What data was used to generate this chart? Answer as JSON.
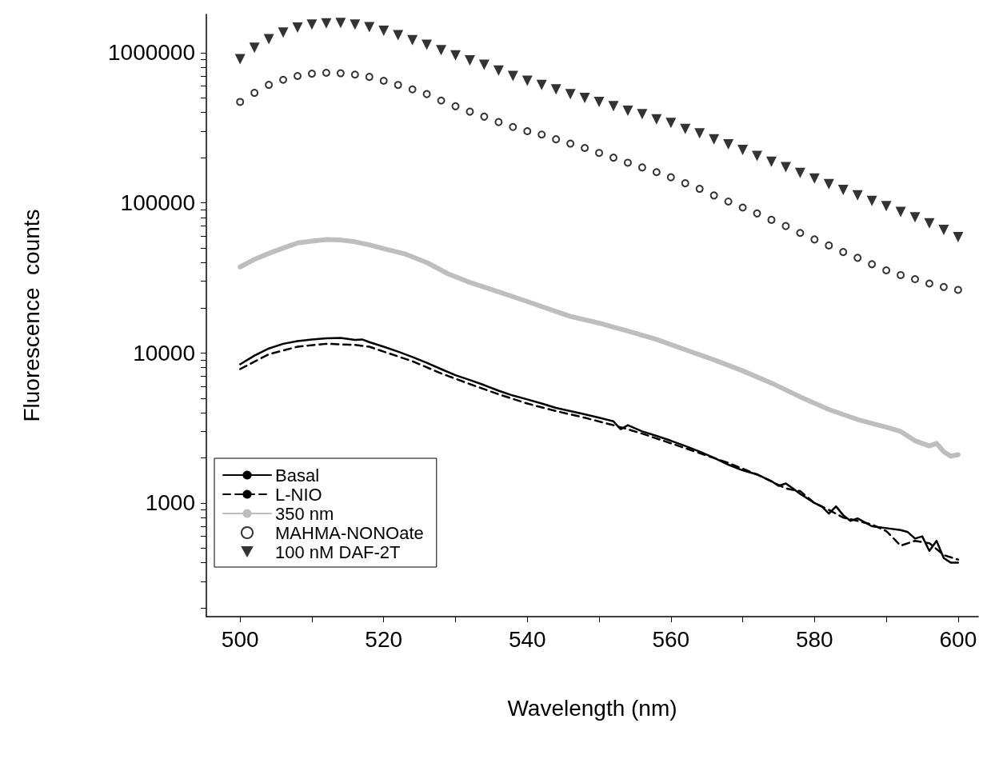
{
  "chart_data": {
    "type": "line",
    "xlabel": "Wavelength (nm)",
    "ylabel": "Fluorescence  counts",
    "log": "y",
    "grid": false,
    "legend": "bottom left",
    "xlim": [
      495.3,
      602.8
    ],
    "xticks": [
      500,
      {
        "value": 510,
        "label": null
      },
      520,
      {
        "value": 530,
        "label": null
      },
      540,
      {
        "value": 550,
        "label": null
      },
      560,
      {
        "value": 570,
        "label": null
      },
      580,
      {
        "value": 590,
        "label": null
      },
      600
    ],
    "ylim": [
      175,
      1800000
    ],
    "yticks": [
      {
        "value": 200,
        "label": null
      },
      {
        "value": 300,
        "label": null
      },
      {
        "value": 400,
        "label": null
      },
      {
        "value": 500,
        "label": null
      },
      {
        "value": 600,
        "label": null
      },
      {
        "value": 700,
        "label": null
      },
      {
        "value": 800,
        "label": null
      },
      {
        "value": 900,
        "label": null
      },
      1000,
      {
        "value": 2000,
        "label": null
      },
      {
        "value": 3000,
        "label": null
      },
      {
        "value": 4000,
        "label": null
      },
      {
        "value": 5000,
        "label": null
      },
      {
        "value": 6000,
        "label": null
      },
      {
        "value": 7000,
        "label": null
      },
      {
        "value": 8000,
        "label": null
      },
      {
        "value": 9000,
        "label": null
      },
      10000,
      {
        "value": 20000,
        "label": null
      },
      {
        "value": 30000,
        "label": null
      },
      {
        "value": 40000,
        "label": null
      },
      {
        "value": 50000,
        "label": null
      },
      {
        "value": 60000,
        "label": null
      },
      {
        "value": 70000,
        "label": null
      },
      {
        "value": 80000,
        "label": null
      },
      {
        "value": 90000,
        "label": null
      },
      100000,
      {
        "value": 200000,
        "label": null
      },
      {
        "value": 300000,
        "label": null
      },
      {
        "value": 400000,
        "label": null
      },
      {
        "value": 500000,
        "label": null
      },
      {
        "value": 600000,
        "label": null
      },
      {
        "value": 700000,
        "label": null
      },
      {
        "value": 800000,
        "label": null
      },
      {
        "value": 900000,
        "label": null
      },
      1000000
    ],
    "series": [
      {
        "name": "Basal",
        "line_style": "solid",
        "marker": "none",
        "color": "#000000",
        "x": [
          500,
          502,
          504,
          506,
          508,
          510,
          512,
          514,
          516,
          517,
          518,
          520,
          522,
          524,
          526,
          528,
          530,
          532,
          534,
          536,
          538,
          540,
          542,
          544,
          546,
          548,
          550,
          552,
          553,
          554,
          556,
          558,
          560,
          562,
          564,
          566,
          568,
          570,
          572,
          574,
          575,
          576,
          577,
          578,
          580,
          581,
          582,
          583,
          584,
          585,
          586,
          588,
          590,
          592,
          593,
          594,
          595,
          596,
          597,
          598,
          599,
          600
        ],
        "values": [
          8400,
          9600,
          10700,
          11500,
          12000,
          12300,
          12500,
          12600,
          12200,
          12300,
          11800,
          11000,
          10200,
          9400,
          8600,
          7800,
          7100,
          6600,
          6100,
          5600,
          5200,
          4900,
          4600,
          4300,
          4100,
          3900,
          3700,
          3500,
          3100,
          3300,
          3000,
          2800,
          2600,
          2400,
          2200,
          2000,
          1800,
          1650,
          1550,
          1400,
          1300,
          1350,
          1250,
          1150,
          1000,
          950,
          850,
          950,
          830,
          760,
          790,
          700,
          680,
          660,
          640,
          580,
          600,
          480,
          560,
          430,
          400,
          400
        ]
      },
      {
        "name": "L-NIO",
        "line_style": "dashed",
        "marker": "none",
        "color": "#000000",
        "x": [
          500,
          504,
          508,
          512,
          516,
          518,
          520,
          524,
          528,
          532,
          536,
          540,
          544,
          548,
          552,
          554,
          556,
          560,
          564,
          568,
          572,
          576,
          578,
          580,
          582,
          584,
          586,
          588,
          590,
          592,
          594,
          596,
          598,
          600
        ],
        "values": [
          7800,
          9800,
          11000,
          11500,
          11300,
          11000,
          10200,
          8800,
          7300,
          6200,
          5300,
          4600,
          4100,
          3700,
          3300,
          3100,
          2900,
          2500,
          2150,
          1850,
          1550,
          1250,
          1200,
          1000,
          900,
          800,
          760,
          720,
          650,
          520,
          560,
          540,
          450,
          420
        ]
      },
      {
        "name": "350 nm",
        "line_style": "solid",
        "marker": "none",
        "color": "#bebebe",
        "x": [
          500,
          502,
          504,
          506,
          508,
          510,
          512,
          514,
          516,
          518,
          520,
          523,
          526,
          529,
          532,
          536,
          540,
          543,
          546,
          550,
          554,
          558,
          562,
          566,
          570,
          574,
          578,
          582,
          586,
          590,
          592,
          594,
          596,
          597,
          598,
          599,
          600
        ],
        "values": [
          37400,
          42000,
          46000,
          50000,
          54000,
          55500,
          56900,
          56500,
          55000,
          52500,
          49500,
          45600,
          40000,
          33600,
          29500,
          25500,
          22000,
          19600,
          17500,
          15800,
          14000,
          12300,
          10500,
          9000,
          7600,
          6300,
          5100,
          4200,
          3600,
          3200,
          3000,
          2600,
          2400,
          2500,
          2200,
          2050,
          2100
        ]
      },
      {
        "name": "MAHMA-NONOate",
        "type": "scatter",
        "marker": "circle",
        "color": "#000000",
        "x": [
          500,
          502,
          504,
          506,
          508,
          510,
          512,
          514,
          516,
          518,
          520,
          522,
          524,
          526,
          528,
          530,
          532,
          534,
          536,
          538,
          540,
          542,
          544,
          546,
          548,
          550,
          552,
          554,
          556,
          558,
          560,
          562,
          564,
          566,
          568,
          570,
          572,
          574,
          576,
          578,
          580,
          582,
          584,
          586,
          588,
          590,
          592,
          594,
          596,
          598,
          600
        ],
        "values": [
          470000,
          540000,
          611000,
          660000,
          700000,
          725000,
          735000,
          730000,
          715000,
          690000,
          650000,
          610000,
          570000,
          530000,
          480000,
          440000,
          405000,
          375000,
          345000,
          320000,
          300000,
          285000,
          265000,
          248000,
          232000,
          215000,
          200000,
          185000,
          172000,
          160000,
          148000,
          135000,
          124000,
          112000,
          102000,
          93000,
          85000,
          77000,
          70000,
          63000,
          57000,
          52000,
          47000,
          43000,
          39000,
          35500,
          33000,
          31000,
          29000,
          27500,
          26300
        ]
      },
      {
        "name": "100 nM DAF-2T",
        "type": "scatter",
        "marker": "triangle",
        "color": "#000000",
        "x": [
          500,
          502,
          504,
          506,
          508,
          510,
          512,
          514,
          516,
          518,
          520,
          522,
          524,
          526,
          528,
          530,
          532,
          534,
          536,
          538,
          540,
          542,
          544,
          546,
          548,
          550,
          552,
          554,
          556,
          558,
          560,
          562,
          564,
          566,
          568,
          570,
          572,
          574,
          576,
          578,
          580,
          582,
          584,
          586,
          588,
          590,
          592,
          594,
          596,
          598,
          600
        ],
        "values": [
          906000,
          1080000,
          1230000,
          1360000,
          1470000,
          1540000,
          1570000,
          1580000,
          1540000,
          1480000,
          1400000,
          1310000,
          1210000,
          1130000,
          1040000,
          960000,
          890000,
          830000,
          760000,
          700000,
          650000,
          610000,
          570000,
          530000,
          500000,
          470000,
          440000,
          410000,
          390000,
          360000,
          340000,
          310000,
          290000,
          265000,
          245000,
          225000,
          205000,
          188000,
          173000,
          158000,
          145000,
          133000,
          122000,
          112000,
          103000,
          95000,
          87000,
          80000,
          73000,
          66000,
          59000
        ]
      }
    ]
  }
}
